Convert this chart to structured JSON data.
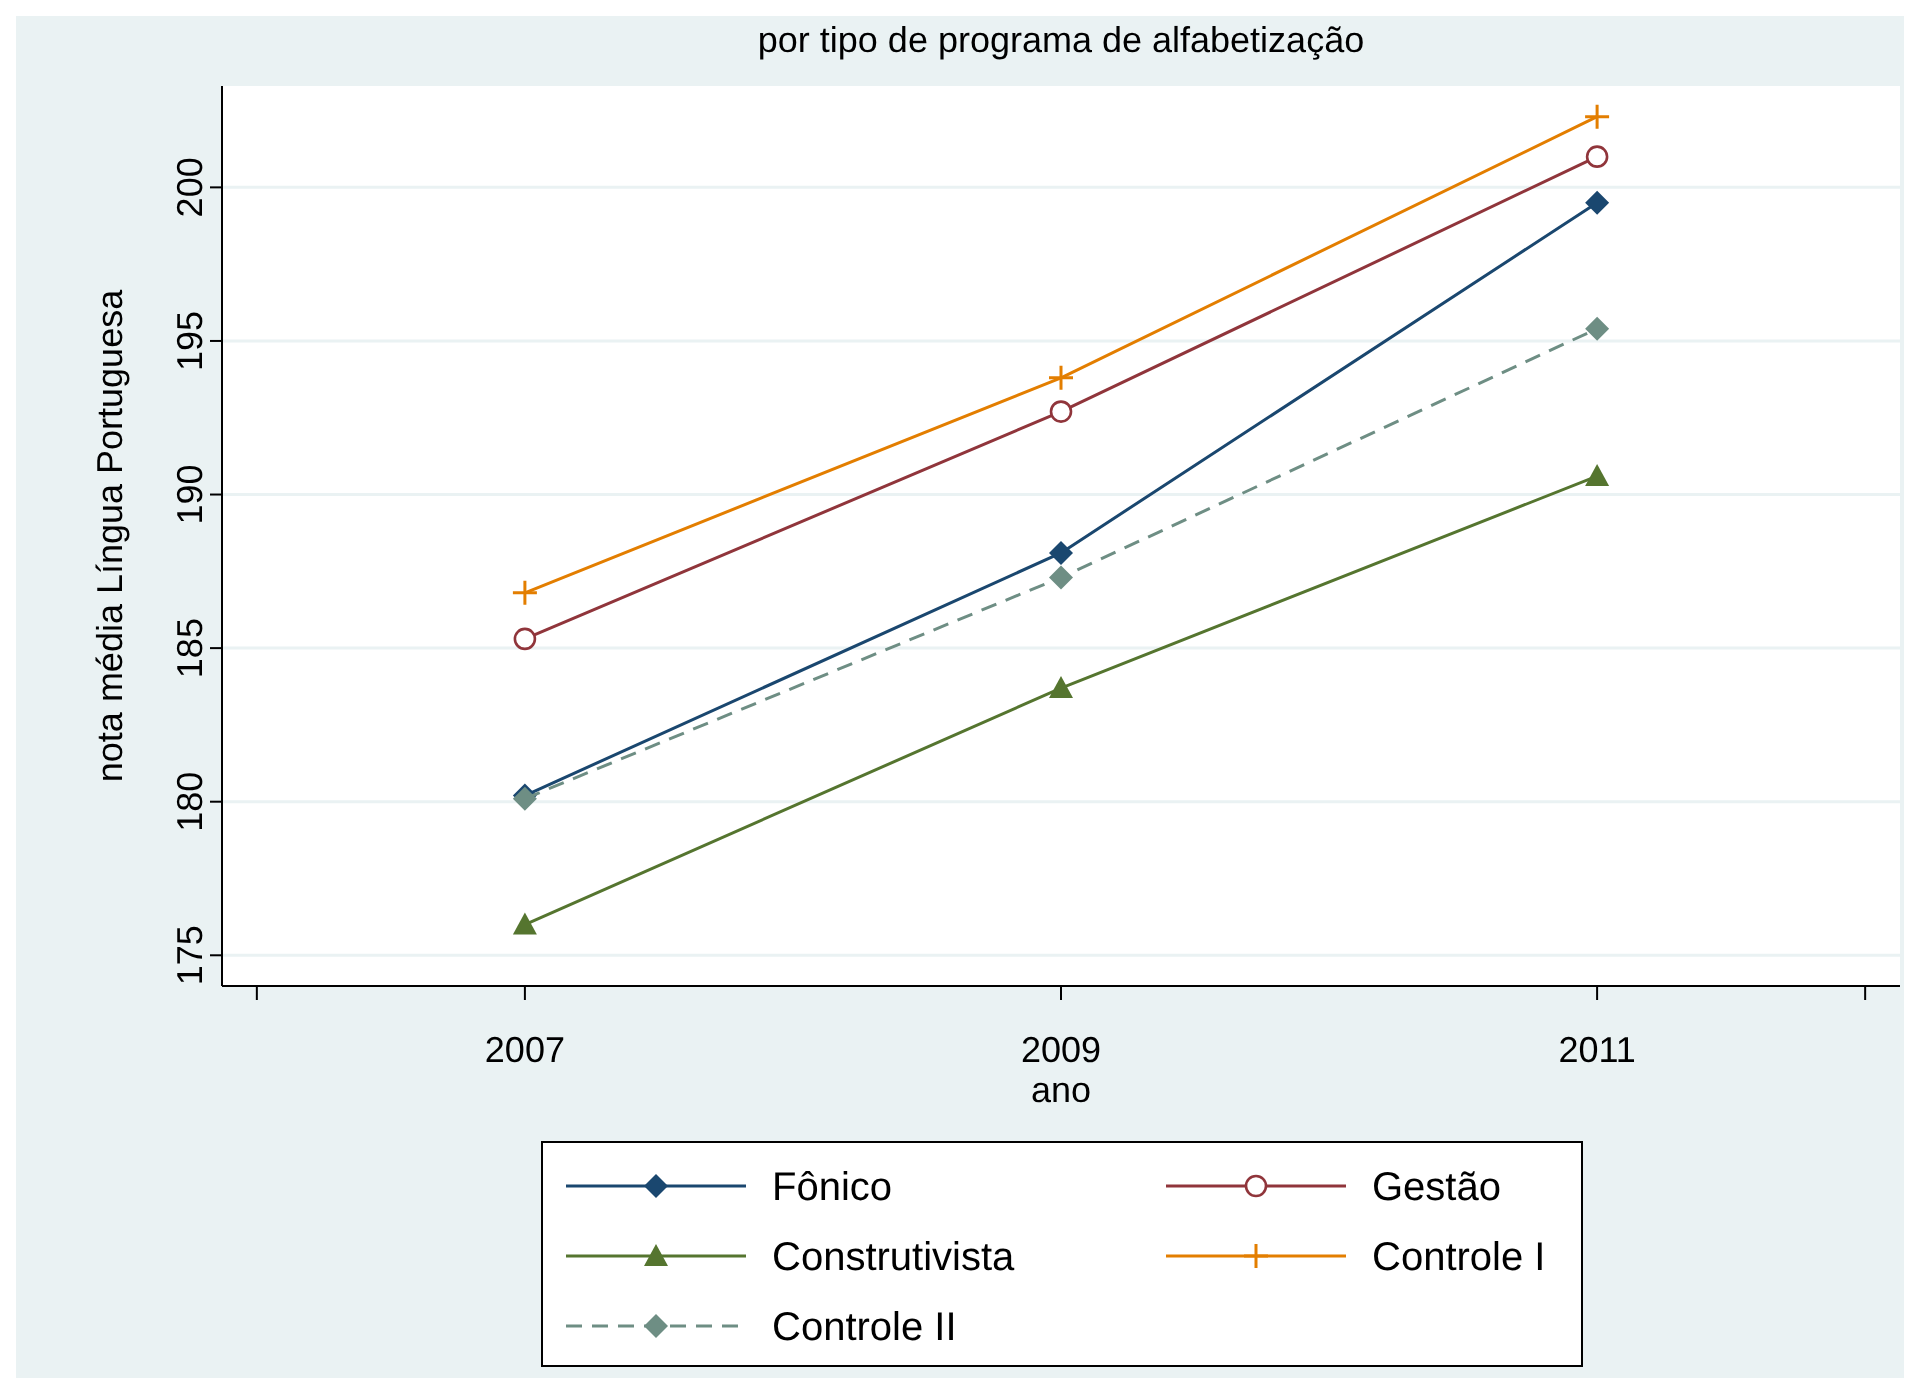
{
  "chart_data": {
    "type": "line",
    "title": "por tipo de programa de alfabetização",
    "xlabel": "ano",
    "ylabel": "nota média Língua Portuguesa",
    "x": [
      2007,
      2009,
      2011
    ],
    "xlim": [
      2005.87,
      2012.13
    ],
    "xticks": [
      {
        "value": 2006,
        "label": null
      },
      2007,
      2009,
      2011,
      {
        "value": 2012,
        "label": null
      }
    ],
    "ylim": [
      174,
      203.3
    ],
    "yticks": [
      175,
      180,
      185,
      190,
      195,
      200
    ],
    "grid": "y",
    "legend": "bottom",
    "series": [
      {
        "name": "Fônico",
        "color": "#1a476f",
        "marker": "diamond",
        "line_style": "solid",
        "values": [
          180.2,
          188.1,
          199.5
        ]
      },
      {
        "name": "Gestão",
        "color": "#90353b",
        "marker": "circle",
        "line_style": "solid",
        "values": [
          185.3,
          192.7,
          201.0
        ]
      },
      {
        "name": "Construtivista",
        "color": "#55752f",
        "marker": "triangle",
        "line_style": "solid",
        "values": [
          176.0,
          183.7,
          190.6
        ]
      },
      {
        "name": "Controle I",
        "color": "#e37e00",
        "marker": "cross",
        "line_style": "solid",
        "values": [
          186.8,
          193.8,
          202.3
        ]
      },
      {
        "name": "Controle II",
        "color": "#6e8e84",
        "marker": "diamond",
        "line_style": "dashed",
        "values": [
          180.1,
          187.3,
          195.4
        ]
      }
    ]
  }
}
